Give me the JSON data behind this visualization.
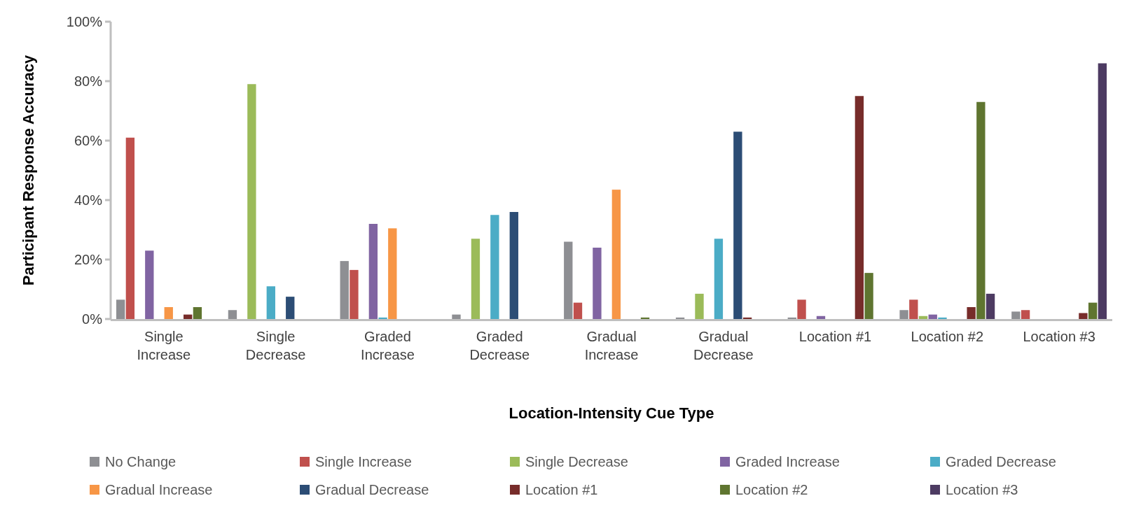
{
  "chart_data": {
    "type": "bar",
    "xlabel": "Location-Intensity Cue Type",
    "ylabel": "Participant Response Accuracy",
    "categories": [
      "Single Increase",
      "Single Decrease",
      "Graded Increase",
      "Graded Decrease",
      "Gradual Increase",
      "Gradual Decrease",
      "Location #1",
      "Location #2",
      "Location #3"
    ],
    "series": [
      {
        "name": "No Change",
        "color": "#8e8f93",
        "values": [
          6.5,
          3,
          19.5,
          1.5,
          26,
          0.5,
          0.5,
          3,
          2.5
        ]
      },
      {
        "name": "Single Increase",
        "color": "#c0504d",
        "values": [
          61,
          0,
          16.5,
          0,
          5.5,
          0,
          6.5,
          6.5,
          3
        ]
      },
      {
        "name": "Single Decrease",
        "color": "#9bbb59",
        "values": [
          0,
          79,
          0,
          27,
          0,
          8.5,
          0,
          1,
          0
        ]
      },
      {
        "name": "Graded Increase",
        "color": "#8064a2",
        "values": [
          23,
          0,
          32,
          0,
          24,
          0,
          1,
          1.5,
          0
        ]
      },
      {
        "name": "Graded Decrease",
        "color": "#4bacc6",
        "values": [
          0,
          11,
          0.5,
          35,
          0,
          27,
          0,
          0.5,
          0
        ]
      },
      {
        "name": "Gradual Increase",
        "color": "#f79646",
        "values": [
          4,
          0,
          30.5,
          0,
          43.5,
          0,
          0,
          0,
          0
        ]
      },
      {
        "name": "Gradual Decrease",
        "color": "#2c4d75",
        "values": [
          0,
          7.5,
          0,
          36,
          0,
          63,
          0,
          0,
          0
        ]
      },
      {
        "name": "Location #1",
        "color": "#772c2a",
        "values": [
          1.5,
          0,
          0,
          0,
          0,
          0.5,
          75,
          4,
          2
        ]
      },
      {
        "name": "Location #2",
        "color": "#5f7530",
        "values": [
          4,
          0,
          0,
          0,
          0.5,
          0,
          15.5,
          73,
          5.5
        ]
      },
      {
        "name": "Location #3",
        "color": "#4d3b62",
        "values": [
          0,
          0,
          0,
          0,
          0,
          0,
          0,
          8.5,
          86
        ]
      }
    ],
    "ylim": [
      0,
      100
    ],
    "yticks": [
      {
        "value": 0,
        "label": "0%"
      },
      {
        "value": 20,
        "label": "20%"
      },
      {
        "value": 40,
        "label": "40%"
      },
      {
        "value": 60,
        "label": "60%"
      },
      {
        "value": 80,
        "label": "80%"
      },
      {
        "value": 100,
        "label": "100%"
      }
    ],
    "grid": false,
    "legend": "bottom"
  }
}
